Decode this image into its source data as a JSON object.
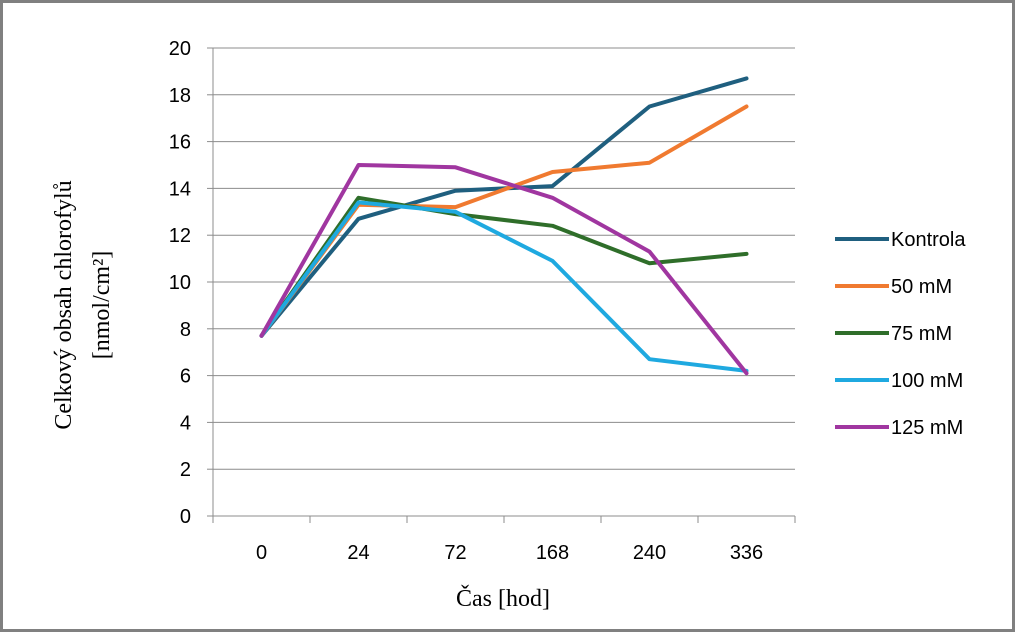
{
  "chart_data": {
    "type": "line",
    "categories": [
      "0",
      "24",
      "72",
      "168",
      "240",
      "336"
    ],
    "xlabel": "Čas [hod]",
    "ylabel_line1": "Celkový obsah chlorofylů",
    "ylabel_line2": "[nmol/cm²]",
    "ylim": [
      0,
      20
    ],
    "yticks": [
      0,
      2,
      4,
      6,
      8,
      10,
      12,
      14,
      16,
      18,
      20
    ],
    "grid": true,
    "legend_position": "right",
    "series": [
      {
        "name": "Kontrola",
        "color": "#1f5f7f",
        "values": [
          7.7,
          12.7,
          13.9,
          14.1,
          17.5,
          18.7
        ]
      },
      {
        "name": "50 mM",
        "color": "#f07a30",
        "values": [
          7.7,
          13.3,
          13.2,
          14.7,
          15.1,
          17.5
        ]
      },
      {
        "name": "75 mM",
        "color": "#2f6e2a",
        "values": [
          7.7,
          13.6,
          12.9,
          12.4,
          10.8,
          11.2
        ]
      },
      {
        "name": "100 mM",
        "color": "#1fa9e0",
        "values": [
          7.7,
          13.4,
          13.0,
          10.9,
          6.7,
          6.2
        ]
      },
      {
        "name": "125 mM",
        "color": "#a036a0",
        "values": [
          7.7,
          15.0,
          14.9,
          13.6,
          11.3,
          6.1
        ]
      }
    ]
  }
}
